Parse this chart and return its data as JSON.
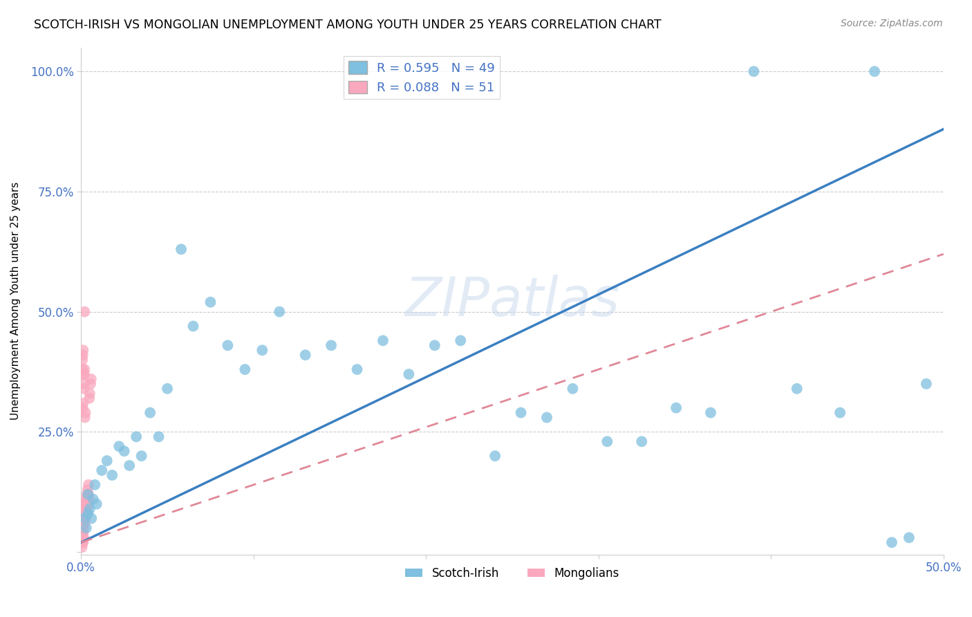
{
  "title": "SCOTCH-IRISH VS MONGOLIAN UNEMPLOYMENT AMONG YOUTH UNDER 25 YEARS CORRELATION CHART",
  "source": "Source: ZipAtlas.com",
  "ylabel": "Unemployment Among Youth under 25 years",
  "xlim": [
    0.0,
    0.5
  ],
  "ylim": [
    -0.005,
    1.05
  ],
  "scotch_irish_R": 0.595,
  "scotch_irish_N": 49,
  "mongolian_R": 0.088,
  "mongolian_N": 51,
  "scotch_irish_color": "#7fbfdf",
  "mongolian_color": "#f9a8be",
  "scotch_irish_line_color": "#3a7fc1",
  "mongolian_line_color": "#e08898",
  "watermark": "ZIPatlas",
  "si_line_x0": 0.0,
  "si_line_y0": 0.02,
  "si_line_x1": 0.5,
  "si_line_y1": 0.88,
  "mo_line_x0": 0.0,
  "mo_line_y0": 0.02,
  "mo_line_x1": 0.5,
  "mo_line_y1": 0.62,
  "scotch_irish_x": [
    0.002,
    0.003,
    0.004,
    0.004,
    0.005,
    0.006,
    0.007,
    0.008,
    0.009,
    0.012,
    0.015,
    0.018,
    0.022,
    0.025,
    0.028,
    0.032,
    0.035,
    0.04,
    0.045,
    0.05,
    0.058,
    0.065,
    0.075,
    0.085,
    0.095,
    0.105,
    0.115,
    0.13,
    0.145,
    0.16,
    0.175,
    0.19,
    0.205,
    0.22,
    0.24,
    0.255,
    0.27,
    0.285,
    0.305,
    0.325,
    0.345,
    0.365,
    0.39,
    0.415,
    0.44,
    0.46,
    0.47,
    0.48,
    0.49
  ],
  "scotch_irish_y": [
    0.07,
    0.05,
    0.08,
    0.12,
    0.09,
    0.07,
    0.11,
    0.14,
    0.1,
    0.17,
    0.19,
    0.16,
    0.22,
    0.21,
    0.18,
    0.24,
    0.2,
    0.29,
    0.24,
    0.34,
    0.63,
    0.47,
    0.52,
    0.43,
    0.38,
    0.42,
    0.5,
    0.41,
    0.43,
    0.38,
    0.44,
    0.37,
    0.43,
    0.44,
    0.2,
    0.29,
    0.28,
    0.34,
    0.23,
    0.23,
    0.3,
    0.29,
    1.0,
    0.34,
    0.29,
    1.0,
    0.02,
    0.03,
    0.35
  ],
  "mongolian_x": [
    0.0005,
    0.0007,
    0.0008,
    0.001,
    0.0012,
    0.0013,
    0.0015,
    0.0017,
    0.0018,
    0.002,
    0.0022,
    0.0023,
    0.0025,
    0.0027,
    0.0028,
    0.003,
    0.0032,
    0.0033,
    0.0035,
    0.0037,
    0.0038,
    0.004,
    0.0042,
    0.0043,
    0.0045,
    0.0048,
    0.005,
    0.0055,
    0.0058,
    0.001,
    0.0012,
    0.0015,
    0.0018,
    0.002,
    0.0022,
    0.0025,
    0.0007,
    0.0008,
    0.001,
    0.0012,
    0.0015,
    0.0018,
    0.002,
    0.0005,
    0.0007,
    0.0008,
    0.001,
    0.0012,
    0.0015,
    0.0005,
    0.0008
  ],
  "mongolian_y": [
    0.04,
    0.03,
    0.05,
    0.06,
    0.04,
    0.07,
    0.05,
    0.08,
    0.07,
    0.06,
    0.08,
    0.09,
    0.1,
    0.07,
    0.11,
    0.08,
    0.1,
    0.12,
    0.09,
    0.11,
    0.13,
    0.1,
    0.12,
    0.14,
    0.11,
    0.32,
    0.33,
    0.35,
    0.36,
    0.3,
    0.31,
    0.34,
    0.37,
    0.38,
    0.28,
    0.29,
    0.38,
    0.4,
    0.41,
    0.42,
    0.37,
    0.35,
    0.5,
    0.03,
    0.02,
    0.04,
    0.03,
    0.02,
    0.03,
    0.01,
    0.02
  ]
}
